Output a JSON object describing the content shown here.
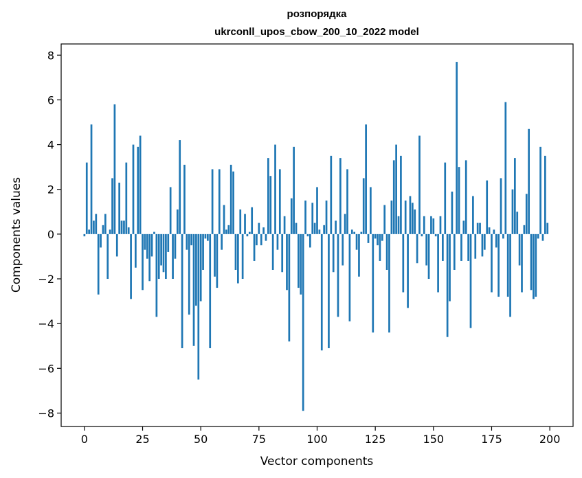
{
  "chart_data": {
    "type": "bar",
    "title": "розпорядка",
    "subtitle": "ukrconll_upos_cbow_200_10_2022 model",
    "xlabel": "Vector components",
    "ylabel": "Components values",
    "xlim": [
      -10,
      210
    ],
    "ylim": [
      -8.6,
      8.5
    ],
    "xticks": [
      0,
      25,
      50,
      75,
      100,
      125,
      150,
      175,
      200
    ],
    "yticks": [
      -8,
      -6,
      -4,
      -2,
      0,
      2,
      4,
      6,
      8
    ],
    "grid": false,
    "bar_color": "#1f77b4",
    "x": [
      0,
      1,
      2,
      3,
      4,
      5,
      6,
      7,
      8,
      9,
      10,
      11,
      12,
      13,
      14,
      15,
      16,
      17,
      18,
      19,
      20,
      21,
      22,
      23,
      24,
      25,
      26,
      27,
      28,
      29,
      30,
      31,
      32,
      33,
      34,
      35,
      36,
      37,
      38,
      39,
      40,
      41,
      42,
      43,
      44,
      45,
      46,
      47,
      48,
      49,
      50,
      51,
      52,
      53,
      54,
      55,
      56,
      57,
      58,
      59,
      60,
      61,
      62,
      63,
      64,
      65,
      66,
      67,
      68,
      69,
      70,
      71,
      72,
      73,
      74,
      75,
      76,
      77,
      78,
      79,
      80,
      81,
      82,
      83,
      84,
      85,
      86,
      87,
      88,
      89,
      90,
      91,
      92,
      93,
      94,
      95,
      96,
      97,
      98,
      99,
      100,
      101,
      102,
      103,
      104,
      105,
      106,
      107,
      108,
      109,
      110,
      111,
      112,
      113,
      114,
      115,
      116,
      117,
      118,
      119,
      120,
      121,
      122,
      123,
      124,
      125,
      126,
      127,
      128,
      129,
      130,
      131,
      132,
      133,
      134,
      135,
      136,
      137,
      138,
      139,
      140,
      141,
      142,
      143,
      144,
      145,
      146,
      147,
      148,
      149,
      150,
      151,
      152,
      153,
      154,
      155,
      156,
      157,
      158,
      159,
      160,
      161,
      162,
      163,
      164,
      165,
      166,
      167,
      168,
      169,
      170,
      171,
      172,
      173,
      174,
      175,
      176,
      177,
      178,
      179,
      180,
      181,
      182,
      183,
      184,
      185,
      186,
      187,
      188,
      189,
      190,
      191,
      192,
      193,
      194,
      195,
      196,
      197,
      198,
      199
    ],
    "values": [
      -0.1,
      3.2,
      0.2,
      4.9,
      0.6,
      0.9,
      -2.7,
      -0.6,
      0.4,
      0.9,
      -2.0,
      0.2,
      2.5,
      5.8,
      -1.0,
      2.3,
      0.6,
      0.6,
      3.2,
      0.3,
      -2.9,
      4.0,
      -1.5,
      3.9,
      4.4,
      -2.5,
      -0.7,
      -1.1,
      -2.1,
      -1.0,
      0.1,
      -3.7,
      -2.0,
      -1.4,
      -1.7,
      -2.0,
      -0.8,
      2.1,
      -2.0,
      -1.1,
      1.1,
      4.2,
      -5.1,
      3.1,
      -0.7,
      -3.6,
      -0.5,
      -5.0,
      -3.2,
      -6.5,
      -3.0,
      -1.6,
      -0.2,
      -0.3,
      -5.1,
      2.9,
      -1.9,
      -2.4,
      2.9,
      -0.7,
      1.3,
      0.2,
      0.4,
      3.1,
      2.8,
      -1.6,
      -2.2,
      1.1,
      -2.0,
      0.9,
      -0.1,
      0.1,
      1.2,
      -1.2,
      -0.5,
      0.5,
      -0.5,
      0.3,
      -0.3,
      3.4,
      2.6,
      -1.6,
      4.0,
      -0.7,
      2.9,
      -1.7,
      0.8,
      -2.5,
      -4.8,
      1.6,
      3.9,
      0.5,
      -2.4,
      -2.7,
      -7.9,
      1.5,
      -0.1,
      -0.6,
      1.4,
      0.5,
      2.1,
      0.2,
      -5.2,
      0.4,
      1.5,
      -5.1,
      3.5,
      -1.7,
      0.6,
      -3.7,
      3.4,
      -1.4,
      0.9,
      2.9,
      -3.9,
      0.2,
      0.1,
      -0.7,
      -1.9,
      0.1,
      2.5,
      4.9,
      -0.4,
      2.1,
      -4.4,
      -0.2,
      -0.5,
      -1.2,
      -0.3,
      1.3,
      -1.6,
      -4.4,
      1.5,
      3.3,
      4.0,
      0.8,
      3.5,
      -2.6,
      1.5,
      -3.3,
      1.7,
      1.4,
      1.1,
      -1.3,
      4.4,
      -0.1,
      0.8,
      -1.4,
      -2.0,
      0.8,
      0.7,
      -0.1,
      -2.6,
      0.8,
      -1.2,
      3.2,
      -4.6,
      -3.0,
      1.9,
      -1.6,
      7.7,
      3.0,
      -1.2,
      0.6,
      3.3,
      -1.2,
      -4.2,
      1.7,
      -1.1,
      0.5,
      0.5,
      -1.0,
      -0.7,
      2.4,
      0.3,
      -2.6,
      0.2,
      -0.6,
      -2.8,
      2.5,
      -0.2,
      5.9,
      -2.8,
      -3.7,
      2.0,
      3.4,
      1.0,
      -1.4,
      -2.6,
      0.4,
      1.8,
      4.7,
      -2.5,
      -2.9,
      -2.8,
      -0.2,
      3.9,
      -0.3,
      3.5,
      0.5
    ]
  }
}
